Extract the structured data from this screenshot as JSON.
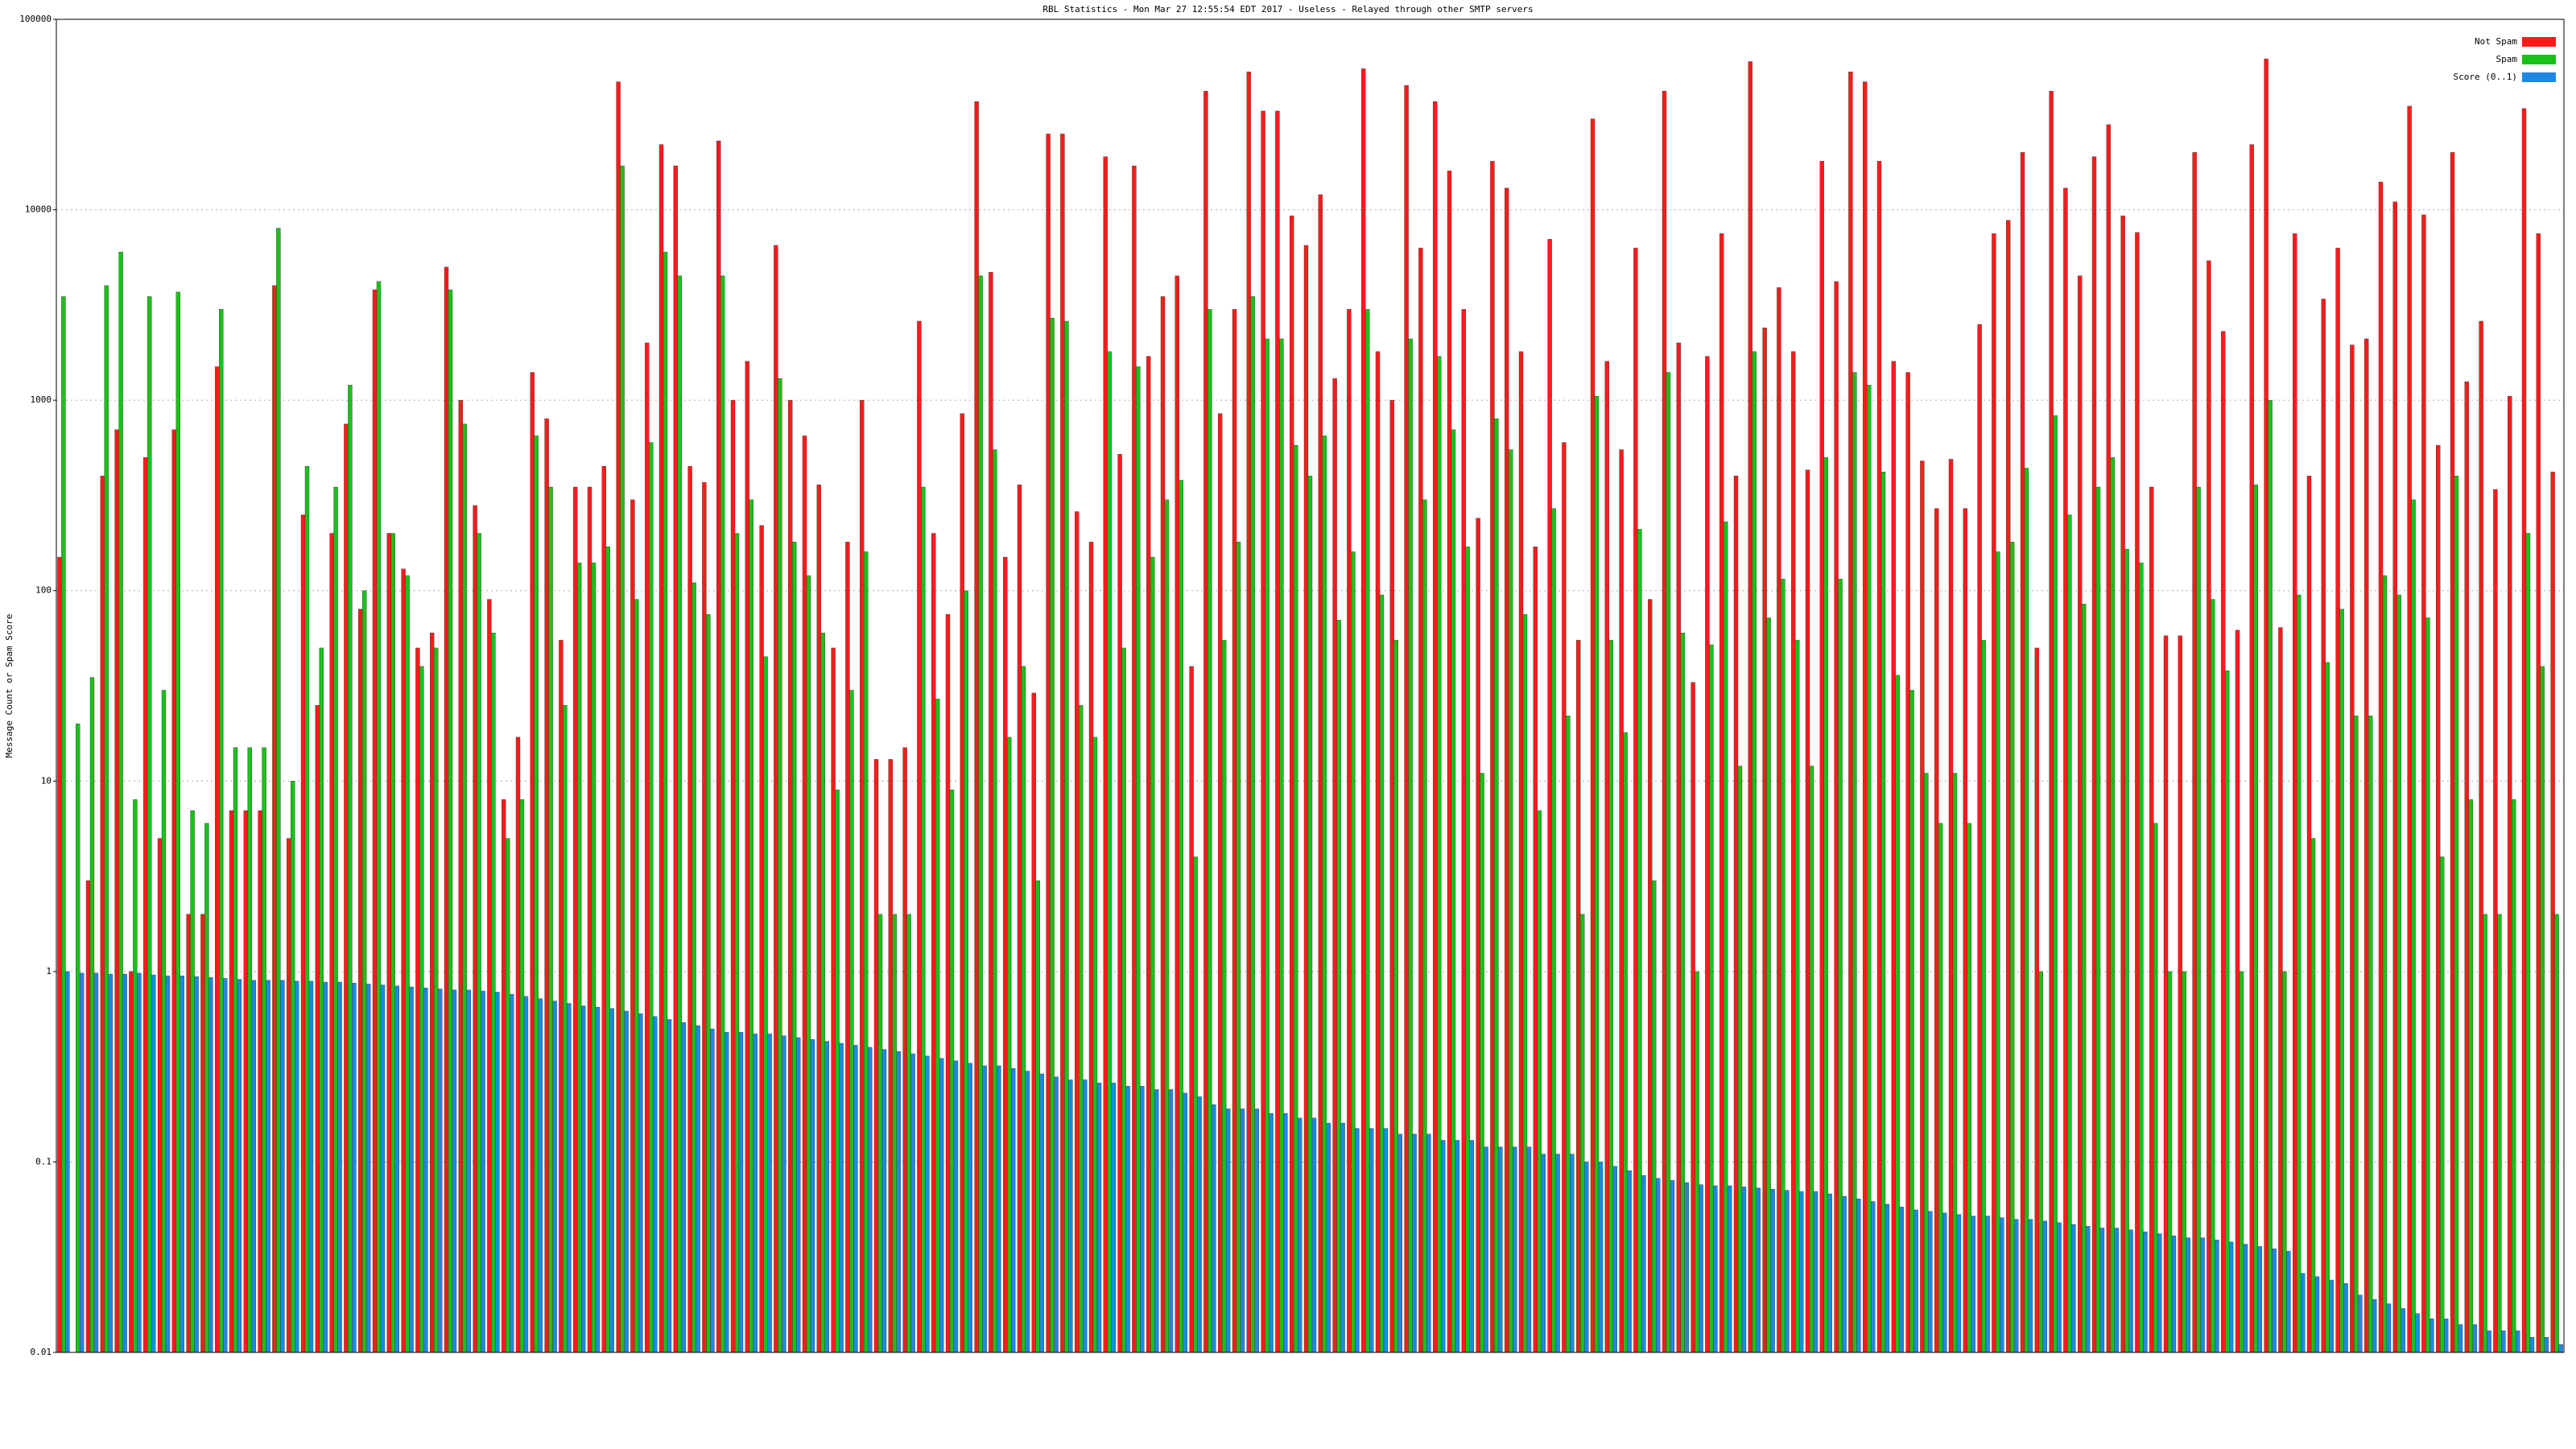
{
  "chart_data": {
    "type": "bar",
    "title": "RBL Statistics - Mon Mar 27 12:55:54 EDT 2017 - Useless - Relayed through other SMTP servers",
    "y_label": "Message Count or Spam Score",
    "log_scale": true,
    "grid": true,
    "legend": "top-right",
    "ylim": [
      0.01,
      100000
    ],
    "yticks": [
      0.01,
      0.1,
      1,
      10,
      100,
      1000,
      10000,
      100000
    ],
    "categories": [
      null,
      null,
      null,
      null,
      null,
      null,
      null,
      null,
      null,
      null,
      null,
      null,
      null,
      null,
      null,
      null,
      null,
      null,
      null,
      null,
      null,
      null,
      null,
      null,
      null,
      null,
      null,
      null,
      null,
      null,
      null,
      null,
      null,
      null,
      null,
      null,
      null,
      null,
      null,
      null,
      null,
      null,
      null,
      null,
      null,
      null,
      null,
      null,
      null,
      null,
      null,
      null,
      null,
      null,
      null,
      null,
      null,
      null,
      null,
      null,
      null,
      null,
      null,
      null,
      null,
      null,
      null,
      null,
      null,
      null,
      null,
      null,
      null,
      null,
      null,
      null,
      null,
      null,
      null,
      null,
      null,
      null,
      null,
      null,
      null,
      null,
      null,
      null,
      null,
      null,
      null,
      null,
      null,
      null,
      null,
      null,
      null,
      null,
      null,
      null,
      null,
      null,
      null,
      null,
      null,
      null,
      null,
      null,
      null,
      null,
      null,
      null,
      null,
      null,
      null,
      null,
      null,
      null,
      null,
      null,
      null,
      null,
      null,
      null,
      null,
      null,
      null,
      null,
      null,
      null,
      null,
      null,
      null,
      null,
      null,
      null,
      null,
      null,
      null,
      null,
      null,
      null,
      null,
      null,
      null,
      null,
      null,
      null,
      null,
      null,
      null,
      null,
      null,
      null,
      null,
      null,
      null,
      null,
      null,
      null,
      null,
      null,
      null,
      null,
      null,
      null,
      null,
      null,
      null,
      null,
      null,
      null,
      null,
      null,
      null
    ],
    "series": [
      {
        "name": "Not Spam",
        "color": "#ff1a1a",
        "values": [
          150,
          null,
          3,
          400,
          700,
          1,
          500,
          5,
          700,
          2,
          2,
          1500,
          7,
          7,
          7,
          4000,
          5,
          250,
          25,
          200,
          750,
          80,
          3800,
          200,
          130,
          50,
          60,
          5000,
          1000,
          280,
          90,
          8,
          17,
          1400,
          800,
          55,
          350,
          350,
          450,
          47000,
          300,
          2000,
          22000,
          17000,
          450,
          370,
          23000,
          1000,
          1600,
          220,
          6500,
          1000,
          650,
          360,
          50,
          180,
          1000,
          13,
          13,
          15,
          2600,
          200,
          75,
          850,
          37000,
          4700,
          150,
          360,
          29,
          25000,
          25000,
          260,
          180,
          19000,
          520,
          17000,
          1700,
          3500,
          4500,
          40,
          42000,
          850,
          3000,
          53000,
          33000,
          33000,
          9300,
          6500,
          12000,
          1300,
          3000,
          55000,
          1800,
          1000,
          45000,
          6300,
          37000,
          16000,
          3000,
          240,
          18000,
          13000,
          1800,
          170,
          7000,
          600,
          55,
          30000,
          1600,
          550,
          6300,
          90,
          42000,
          2000,
          33,
          1700,
          7500,
          400,
          60000,
          2400,
          3900,
          1800,
          430,
          18000,
          4200,
          53000,
          47000,
          18000,
          1600,
          1400,
          480,
          270,
          490,
          270,
          2500,
          7500,
          8800,
          20000,
          50,
          42000,
          13000,
          4500,
          19000,
          28000,
          9300,
          7600,
          350,
          58,
          58,
          20000,
          5400,
          2300,
          62,
          22000,
          62000,
          64,
          7500,
          400,
          3400,
          6300,
          1950,
          2100,
          14000,
          11000,
          35000,
          9400,
          580,
          20000,
          1250,
          2600,
          340,
          1050,
          34000,
          7500,
          420
        ]
      },
      {
        "name": "Spam",
        "color": "#19c219",
        "values": [
          3500,
          20,
          35,
          4000,
          6000,
          8,
          3500,
          30,
          3700,
          7,
          6,
          3000,
          15,
          15,
          15,
          8000,
          10,
          450,
          50,
          350,
          1200,
          100,
          4200,
          200,
          120,
          40,
          50,
          3800,
          750,
          200,
          60,
          5,
          8,
          650,
          350,
          25,
          140,
          140,
          170,
          17000,
          90,
          600,
          6000,
          4500,
          110,
          75,
          4500,
          200,
          300,
          45,
          1300,
          180,
          120,
          60,
          9,
          30,
          160,
          2,
          2,
          2,
          350,
          27,
          9,
          100,
          4500,
          550,
          17,
          40,
          3,
          2700,
          2600,
          25,
          17,
          1800,
          50,
          1500,
          150,
          300,
          380,
          4,
          3000,
          55,
          180,
          3500,
          2100,
          2100,
          580,
          400,
          650,
          70,
          160,
          3000,
          95,
          55,
          2100,
          300,
          1700,
          700,
          170,
          11,
          800,
          550,
          75,
          7,
          270,
          22,
          2,
          1050,
          55,
          18,
          210,
          3,
          1400,
          60,
          1,
          52,
          230,
          12,
          1800,
          72,
          115,
          55,
          12,
          500,
          115,
          1400,
          1200,
          420,
          36,
          30,
          11,
          6,
          11,
          6,
          55,
          160,
          180,
          440,
          1,
          830,
          250,
          85,
          350,
          500,
          165,
          140,
          6,
          1,
          1,
          350,
          90,
          38,
          1,
          360,
          1000,
          1,
          95,
          5,
          42,
          80,
          22,
          22,
          120,
          95,
          300,
          72,
          4,
          400,
          8,
          2,
          2,
          8,
          200,
          40,
          2
        ]
      },
      {
        "name": "Score (0..1)",
        "color": "#1e88e5",
        "values": [
          1.0,
          0.98,
          0.98,
          0.97,
          0.97,
          0.98,
          0.96,
          0.95,
          0.95,
          0.94,
          0.93,
          0.92,
          0.91,
          0.9,
          0.9,
          0.9,
          0.89,
          0.89,
          0.88,
          0.88,
          0.87,
          0.86,
          0.85,
          0.84,
          0.83,
          0.82,
          0.81,
          0.8,
          0.8,
          0.79,
          0.78,
          0.76,
          0.74,
          0.72,
          0.7,
          0.68,
          0.66,
          0.65,
          0.64,
          0.62,
          0.6,
          0.58,
          0.56,
          0.54,
          0.52,
          0.5,
          0.48,
          0.48,
          0.47,
          0.47,
          0.46,
          0.45,
          0.44,
          0.43,
          0.42,
          0.41,
          0.4,
          0.39,
          0.38,
          0.37,
          0.36,
          0.35,
          0.34,
          0.33,
          0.32,
          0.32,
          0.31,
          0.3,
          0.29,
          0.28,
          0.27,
          0.27,
          0.26,
          0.26,
          0.25,
          0.25,
          0.24,
          0.24,
          0.23,
          0.22,
          0.2,
          0.19,
          0.19,
          0.19,
          0.18,
          0.18,
          0.17,
          0.17,
          0.16,
          0.16,
          0.15,
          0.15,
          0.15,
          0.14,
          0.14,
          0.14,
          0.13,
          0.13,
          0.13,
          0.12,
          0.12,
          0.12,
          0.12,
          0.11,
          0.11,
          0.11,
          0.1,
          0.1,
          0.095,
          0.09,
          0.085,
          0.082,
          0.08,
          0.078,
          0.076,
          0.075,
          0.075,
          0.074,
          0.073,
          0.072,
          0.071,
          0.07,
          0.07,
          0.068,
          0.066,
          0.064,
          0.062,
          0.06,
          0.058,
          0.056,
          0.055,
          0.054,
          0.053,
          0.052,
          0.052,
          0.051,
          0.05,
          0.05,
          0.049,
          0.048,
          0.047,
          0.046,
          0.045,
          0.045,
          0.044,
          0.043,
          0.042,
          0.041,
          0.04,
          0.04,
          0.039,
          0.038,
          0.037,
          0.036,
          0.035,
          0.034,
          0.026,
          0.025,
          0.024,
          0.023,
          0.02,
          0.019,
          0.018,
          0.017,
          0.016,
          0.015,
          0.015,
          0.014,
          0.014,
          0.013,
          0.013,
          0.013,
          0.012,
          0.012,
          0.011
        ]
      }
    ]
  }
}
